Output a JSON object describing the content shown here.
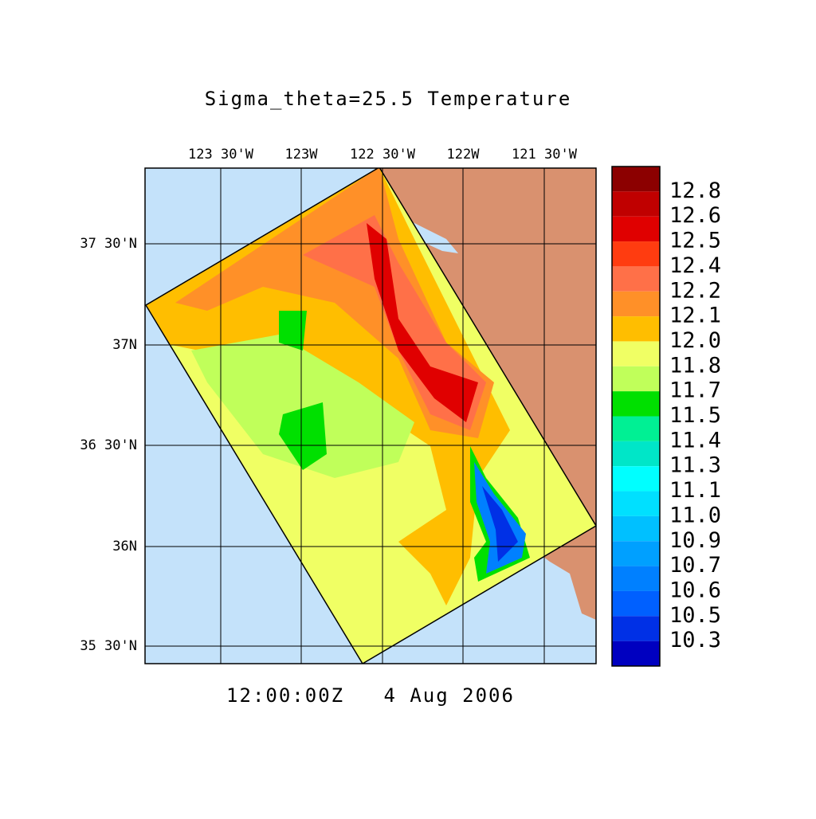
{
  "title": "Sigma_theta=25.5 Temperature",
  "time_label": "12:00:00Z   4 Aug 2006",
  "x_axis_labels": [
    "123 30'W",
    "123W",
    "122 30'W",
    "122W",
    "121 30'W"
  ],
  "y_axis_labels": [
    "37 30'N",
    "37N",
    "36 30'N",
    "36N",
    "35 30'N"
  ],
  "colorbar": {
    "labels": [
      "12.8",
      "12.6",
      "12.5",
      "12.4",
      "12.2",
      "12.1",
      "12.0",
      "11.8",
      "11.7",
      "11.5",
      "11.4",
      "11.3",
      "11.1",
      "11.0",
      "10.9",
      "10.7",
      "10.6",
      "10.5",
      "10.3"
    ],
    "colors": [
      "#8c0000",
      "#c00000",
      "#e00000",
      "#ff3c10",
      "#ff7048",
      "#ff9028",
      "#ffbe00",
      "#f0ff64",
      "#c0ff5a",
      "#00e000",
      "#00f094",
      "#00e6c8",
      "#00ffff",
      "#00e0ff",
      "#00c0ff",
      "#00a0ff",
      "#0080ff",
      "#0060ff",
      "#0030e6",
      "#0000c0"
    ]
  }
}
